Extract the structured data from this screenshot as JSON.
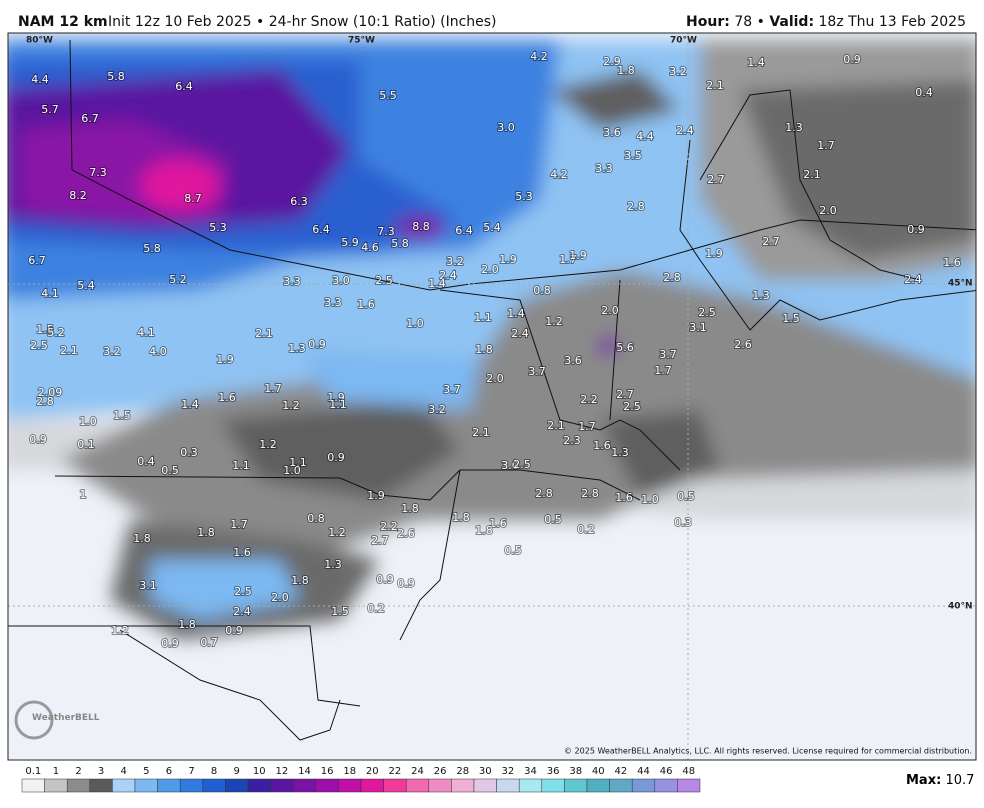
{
  "header": {
    "model": "NAM 12 km",
    "info": "Init 12z 10 Feb 2025 • 24-hr Snow (10:1 Ratio) (Inches)",
    "hour_label": "Hour:",
    "hour": "78",
    "separator": "•",
    "valid_label": "Valid:",
    "valid": "18z Thu 13 Feb 2025"
  },
  "map": {
    "grid_labels": [
      "80°W",
      "75°W",
      "70°W",
      "45°N",
      "40°N"
    ],
    "values": [
      "4.4",
      "5.8",
      "6.4",
      "5.7",
      "6.7",
      "5.5",
      "4.2",
      "2.9",
      "1.8",
      "3.2",
      "2.1",
      "1.4",
      "0.9",
      "0.4",
      "3.0",
      "3.6",
      "4.4",
      "2.4",
      "1.3",
      "1.7",
      "7.3",
      "4.2",
      "3.3",
      "3.5",
      "2.7",
      "2.1",
      "8.2",
      "8.7",
      "6.3",
      "5.3",
      "2.8",
      "2.0",
      "5.3",
      "6.4",
      "7.3",
      "8.8",
      "6.4",
      "5.4",
      "0.9",
      "5.9",
      "4.6",
      "5.8",
      "2.7",
      "5.8",
      "1.9",
      "6.7",
      "3.2",
      "1.9",
      "1.7",
      "1.9",
      "1.6",
      "5.2",
      "3.3",
      "3.0",
      "2.5",
      "2.4",
      "1.4",
      "2.0",
      "2.8",
      "2.4",
      "5.4",
      "4.1",
      "0.8",
      "1.3",
      "3.3",
      "1.6",
      "1.5",
      "5.2",
      "1.1",
      "1.4",
      "1.2",
      "2.0",
      "2.5",
      "1.5",
      "4.1",
      "1.0",
      "3.1",
      "2.1",
      "2.4",
      "2.5",
      "2.1",
      "3.2",
      "4.0",
      "1.3",
      "0.9",
      "1.8",
      "5.6",
      "2.6",
      "1.9",
      "3.6",
      "3.7",
      "1.7",
      "1.7",
      "3.7",
      "2.0",
      "3.7",
      "2.09",
      "2.8",
      "1.6",
      "1.5",
      "1.4",
      "1.2",
      "1.9",
      "1.1",
      "3.2",
      "2.2",
      "2.7",
      "2.5",
      "1.0",
      "2.1",
      "2.1",
      "1.7",
      "0.9",
      "0.1",
      "1.2",
      "2.3",
      "1.6",
      "0.3",
      "0.9",
      "1.3",
      "0.4",
      "1.1",
      "1.1",
      "1.0",
      "0.5",
      "3.0",
      "2.5",
      "1.9",
      "2.8",
      "2.8",
      "1.6",
      "1.0",
      "0.5",
      "1",
      "1.8",
      "1.8",
      "0.8",
      "1.7",
      "1.2",
      "2.2",
      "2.6",
      "1.6",
      "0.5",
      "0.2",
      "0.3",
      "1.8",
      "1.8",
      "2.7",
      "1.8",
      "1.6",
      "0.5",
      "1.3",
      "0.9",
      "0.9",
      "1.8",
      "3.1",
      "2.5",
      "2.0",
      "2.4",
      "1.5",
      "0.2",
      "1.8",
      "0.9",
      "1.2",
      "0.9",
      "0.7"
    ],
    "logo": "WeatherBELL",
    "copyright": "© 2025 WeatherBELL Analytics, LLC. All rights reserved. License required for commercial distribution."
  },
  "colorbar": {
    "labels": [
      "0.1",
      "1",
      "2",
      "3",
      "4",
      "5",
      "6",
      "7",
      "8",
      "9",
      "10",
      "12",
      "14",
      "16",
      "18",
      "20",
      "22",
      "24",
      "26",
      "28",
      "30",
      "32",
      "34",
      "36",
      "38",
      "40",
      "42",
      "44",
      "46",
      "48"
    ],
    "colors": [
      "#f2f2f2",
      "#c4c4c4",
      "#8c8c8c",
      "#5a5a5a",
      "#a9d2f6",
      "#7cb8f2",
      "#4f9be8",
      "#2f7be0",
      "#1f5fd0",
      "#1a45b4",
      "#3a1f9e",
      "#5a16a0",
      "#7a12a6",
      "#9a10a8",
      "#c010a8",
      "#e0189e",
      "#f03a9c",
      "#f06ab0",
      "#f08cc4",
      "#f0b0d4",
      "#e2c8e8",
      "#c8d8f0",
      "#a8e8f0",
      "#80e0e8",
      "#60c8d0",
      "#50b0c0",
      "#60a8c8",
      "#7898d8",
      "#9890e0",
      "#b888e8"
    ],
    "max_label": "Max:",
    "max": "10.7"
  }
}
